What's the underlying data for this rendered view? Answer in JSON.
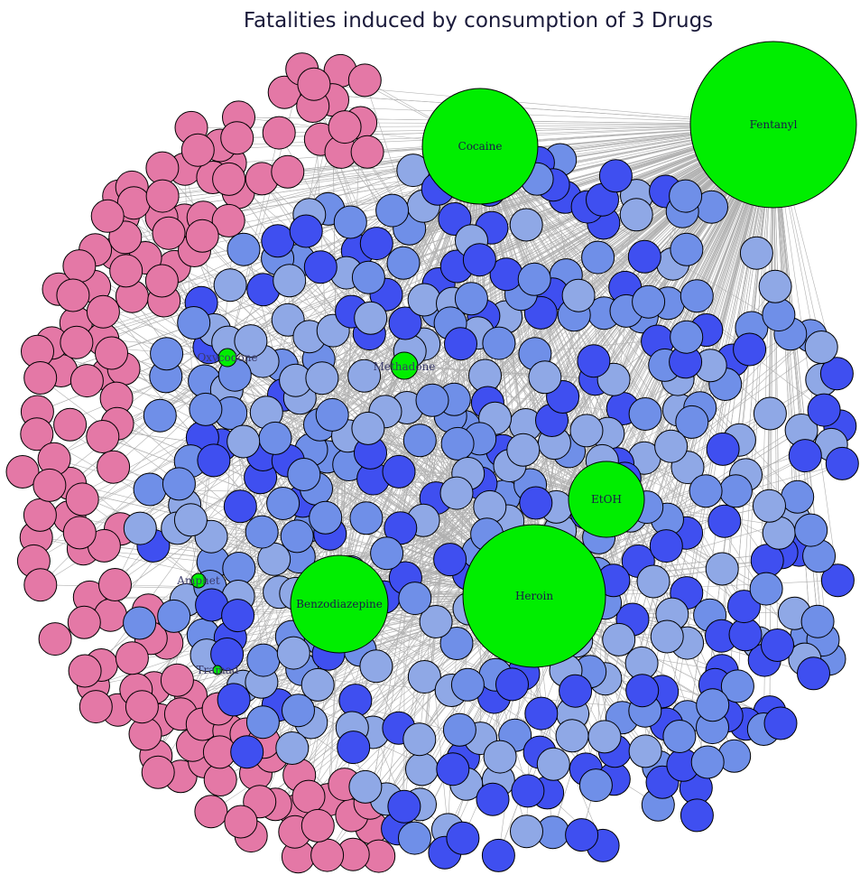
{
  "title": "Fatalities induced by consumption of 3 Drugs",
  "colors": {
    "drug": "#00ee00",
    "victim_dark": "#3f4ff0",
    "victim_mid": "#6f8fe8",
    "victim_light": "#8fa8e6",
    "victim_pink": "#e478a6",
    "edge": "#b0b0b0"
  },
  "drugs": [
    {
      "name": "Fentanyl",
      "relative_size": 1.0
    },
    {
      "name": "Heroin",
      "relative_size": 0.86
    },
    {
      "name": "Cocaine",
      "relative_size": 0.7
    },
    {
      "name": "Benzodiazepine",
      "relative_size": 0.59
    },
    {
      "name": "EtOH",
      "relative_size": 0.46
    },
    {
      "name": "Methadone",
      "relative_size": 0.16
    },
    {
      "name": "Oxycodone",
      "relative_size": 0.11
    },
    {
      "name": "Amphet",
      "relative_size": 0.09
    },
    {
      "name": "Tramad",
      "relative_size": 0.06
    }
  ]
}
